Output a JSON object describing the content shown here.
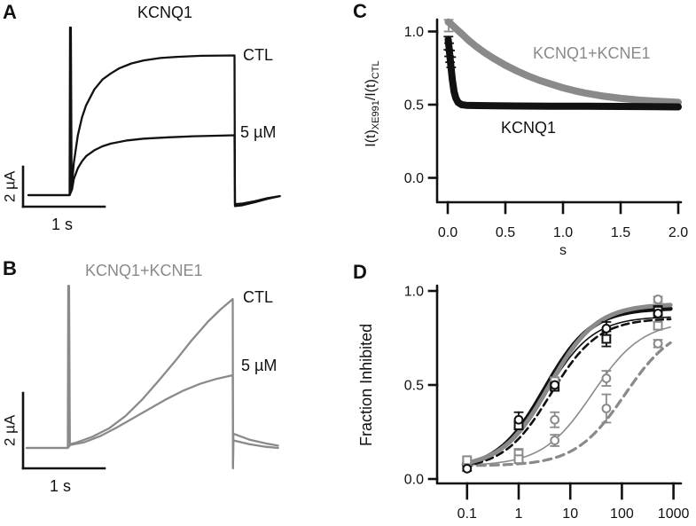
{
  "colors": {
    "black": "#111111",
    "gray": "#8a8a8a"
  },
  "panel_a": {
    "letter": "A",
    "title": "KCNQ1",
    "trace_label_ctl": "CTL",
    "trace_label_dose": "5 µM",
    "scalebar_vertical": "2 µA",
    "scalebar_horizontal": "1 s"
  },
  "panel_b": {
    "letter": "B",
    "title": "KCNQ1+KCNE1",
    "trace_label_ctl": "CTL",
    "trace_label_dose": "5 µM",
    "scalebar_vertical": "2 µA",
    "scalebar_horizontal": "1 s"
  },
  "panel_c": {
    "letter": "C",
    "ylabel_p1": "I(t)",
    "ylabel_s1": "XE991",
    "ylabel_p2": "/I(t)",
    "ylabel_s2": "CTL",
    "xlabel": "s",
    "series_label_gray": "KCNQ1+KCNE1",
    "series_label_black": "KCNQ1"
  },
  "panel_d": {
    "letter": "D",
    "ylabel": "Fraction Inhibited"
  },
  "chart_data": [
    {
      "panel": "A",
      "type": "line",
      "title": "KCNQ1",
      "description": "voltage-clamp current traces, black",
      "time_scalebar_s": 1,
      "current_scalebar_uA": 2,
      "series": [
        {
          "name": "CTL",
          "points": [
            [
              0,
              0
            ],
            [
              0.5,
              0
            ],
            [
              0.505,
              8.4
            ],
            [
              0.515,
              8.4
            ],
            [
              0.525,
              0.3
            ],
            [
              0.55,
              1.6
            ],
            [
              0.6,
              3.0
            ],
            [
              0.65,
              3.9
            ],
            [
              0.7,
              4.5
            ],
            [
              0.8,
              5.3
            ],
            [
              0.9,
              5.8
            ],
            [
              1.0,
              6.1
            ],
            [
              1.1,
              6.35
            ],
            [
              1.25,
              6.6
            ],
            [
              1.4,
              6.75
            ],
            [
              1.6,
              6.87
            ],
            [
              1.8,
              6.93
            ],
            [
              2.1,
              6.98
            ],
            [
              2.5,
              7.0
            ],
            [
              2.505,
              -0.55
            ],
            [
              2.6,
              -0.5
            ],
            [
              2.75,
              -0.35
            ],
            [
              2.9,
              -0.18
            ],
            [
              3.05,
              -0.05
            ]
          ]
        },
        {
          "name": "5 µM",
          "points": [
            [
              0,
              0
            ],
            [
              0.5,
              0
            ],
            [
              0.53,
              0.3
            ],
            [
              0.55,
              0.8
            ],
            [
              0.6,
              1.35
            ],
            [
              0.65,
              1.7
            ],
            [
              0.7,
              1.95
            ],
            [
              0.8,
              2.25
            ],
            [
              0.9,
              2.45
            ],
            [
              1.0,
              2.58
            ],
            [
              1.2,
              2.74
            ],
            [
              1.4,
              2.83
            ],
            [
              1.7,
              2.9
            ],
            [
              2.0,
              2.95
            ],
            [
              2.5,
              3.0
            ],
            [
              2.505,
              -0.45
            ],
            [
              2.6,
              -0.42
            ],
            [
              2.75,
              -0.3
            ],
            [
              2.9,
              -0.15
            ],
            [
              3.05,
              -0.05
            ]
          ]
        }
      ]
    },
    {
      "panel": "B",
      "type": "line",
      "title": "KCNQ1+KCNE1",
      "description": "voltage-clamp current traces, gray",
      "time_scalebar_s": 1,
      "current_scalebar_uA": 2,
      "series": [
        {
          "name": "CTL",
          "points": [
            [
              0,
              0
            ],
            [
              0.5,
              0
            ],
            [
              0.505,
              4.3
            ],
            [
              0.515,
              4.3
            ],
            [
              0.525,
              0.1
            ],
            [
              0.6,
              0.14
            ],
            [
              0.8,
              0.3
            ],
            [
              1.0,
              0.52
            ],
            [
              1.2,
              0.85
            ],
            [
              1.4,
              1.28
            ],
            [
              1.6,
              1.78
            ],
            [
              1.8,
              2.3
            ],
            [
              2.0,
              2.85
            ],
            [
              2.2,
              3.35
            ],
            [
              2.35,
              3.67
            ],
            [
              2.5,
              3.95
            ],
            [
              2.503,
              -0.54
            ],
            [
              2.507,
              0.38
            ],
            [
              2.7,
              0.22
            ],
            [
              2.9,
              0.12
            ],
            [
              3.05,
              0.06
            ]
          ]
        },
        {
          "name": "5 µM",
          "points": [
            [
              0,
              0
            ],
            [
              0.5,
              0
            ],
            [
              0.53,
              0.08
            ],
            [
              0.7,
              0.15
            ],
            [
              0.9,
              0.32
            ],
            [
              1.1,
              0.55
            ],
            [
              1.3,
              0.8
            ],
            [
              1.5,
              1.05
            ],
            [
              1.7,
              1.3
            ],
            [
              1.9,
              1.52
            ],
            [
              2.1,
              1.7
            ],
            [
              2.3,
              1.83
            ],
            [
              2.5,
              1.93
            ],
            [
              2.503,
              -0.5
            ],
            [
              2.507,
              0.2
            ],
            [
              2.7,
              0.1
            ],
            [
              2.9,
              0.03
            ],
            [
              3.05,
              0.0
            ]
          ]
        }
      ]
    },
    {
      "panel": "C",
      "type": "scatter",
      "title": "",
      "xlabel": "s",
      "ylabel": "I(t)XE991/I(t)CTL",
      "xlim": [
        0,
        2
      ],
      "ylim": [
        0,
        1.1
      ],
      "x_ticks": [
        0.0,
        0.5,
        1.0,
        1.5,
        2.0
      ],
      "x_tick_labels": [
        "0.0",
        "0.5",
        "1.0",
        "1.5",
        "2.0"
      ],
      "y_ticks": [
        1.0,
        0.5,
        0.0
      ],
      "y_tick_labels": [
        "1.0",
        "0.5",
        "0.0"
      ],
      "series": [
        {
          "name": "KCNQ1+KCNE1",
          "color": "gray",
          "points": [
            [
              0.004,
              1.065
            ],
            [
              0.03,
              1.05
            ],
            [
              0.07,
              1.02
            ],
            [
              0.12,
              0.985
            ],
            [
              0.18,
              0.94
            ],
            [
              0.25,
              0.895
            ],
            [
              0.32,
              0.855
            ],
            [
              0.4,
              0.815
            ],
            [
              0.5,
              0.77
            ],
            [
              0.6,
              0.73
            ],
            [
              0.7,
              0.695
            ],
            [
              0.8,
              0.665
            ],
            [
              0.9,
              0.64
            ],
            [
              1.0,
              0.615
            ],
            [
              1.1,
              0.595
            ],
            [
              1.2,
              0.578
            ],
            [
              1.35,
              0.558
            ],
            [
              1.5,
              0.543
            ],
            [
              1.65,
              0.532
            ],
            [
              1.8,
              0.524
            ],
            [
              1.95,
              0.518
            ],
            [
              2.0,
              0.516
            ]
          ]
        },
        {
          "name": "KCNQ1",
          "color": "black",
          "points": [
            [
              0.004,
              0.945
            ],
            [
              0.01,
              0.9
            ],
            [
              0.018,
              0.84
            ],
            [
              0.028,
              0.76
            ],
            [
              0.04,
              0.67
            ],
            [
              0.055,
              0.59
            ],
            [
              0.07,
              0.545
            ],
            [
              0.09,
              0.515
            ],
            [
              0.12,
              0.5
            ],
            [
              0.16,
              0.496
            ],
            [
              0.25,
              0.494
            ],
            [
              0.4,
              0.492
            ],
            [
              0.6,
              0.491
            ],
            [
              0.9,
              0.49
            ],
            [
              1.2,
              0.489
            ],
            [
              1.5,
              0.488
            ],
            [
              1.8,
              0.486
            ],
            [
              2.0,
              0.485
            ]
          ]
        }
      ],
      "error_bars": [
        {
          "color": "gray",
          "x": 0.008,
          "y": 1.04,
          "e": 0.04
        },
        {
          "color": "black",
          "x": 0.006,
          "y": 0.92,
          "e": 0.045
        },
        {
          "color": "black",
          "x": 0.012,
          "y": 0.875,
          "e": 0.045
        },
        {
          "color": "black",
          "x": 0.02,
          "y": 0.83,
          "e": 0.04
        },
        {
          "color": "black",
          "x": 0.03,
          "y": 0.79,
          "e": 0.035
        }
      ]
    },
    {
      "panel": "D",
      "type": "scatter",
      "title": "",
      "ylabel": "Fraction Inhibited",
      "x_scale": "log",
      "xlim": [
        0.04,
        1000
      ],
      "ylim": [
        0,
        1.0
      ],
      "x_ticks": [
        0.1,
        1,
        10,
        100,
        1000
      ],
      "x_tick_labels": [
        "0.1",
        "1",
        "10",
        "100",
        "1000"
      ],
      "y_ticks": [
        1.0,
        0.5,
        0.0
      ],
      "y_tick_labels": [
        "1.0",
        "0.5",
        "0.0"
      ],
      "fit_curves": [
        {
          "name": "gray dashed fit",
          "color": "gray",
          "width": 3.2,
          "dash": "9,6",
          "bottom": 0.07,
          "top": 0.83,
          "ic50": 115,
          "hill": 0.9
        },
        {
          "name": "thin gray fit",
          "color": "gray",
          "width": 1.6,
          "dash": "",
          "bottom": 0.07,
          "top": 0.84,
          "ic50": 27,
          "hill": 0.9
        },
        {
          "name": "black dashed fit",
          "color": "black",
          "width": 2.6,
          "dash": "8,5",
          "bottom": 0.05,
          "top": 0.855,
          "ic50": 4.2,
          "hill": 0.95
        },
        {
          "name": "thin black fit",
          "color": "black",
          "width": 1.6,
          "dash": "",
          "bottom": 0.05,
          "top": 0.865,
          "ic50": 3.4,
          "hill": 0.95
        },
        {
          "name": "thick black fit",
          "color": "black",
          "width": 5,
          "dash": "",
          "bottom": 0.05,
          "top": 0.91,
          "ic50": 3.2,
          "hill": 0.95
        },
        {
          "name": "thick gray fit",
          "color": "gray",
          "width": 5,
          "dash": "",
          "bottom": 0.06,
          "top": 0.93,
          "ic50": 3.9,
          "hill": 0.95
        }
      ],
      "markers": [
        {
          "name": "gray circles lower",
          "shape": "circle",
          "color": "gray",
          "points": [
            [
              5,
              0.205,
              0.03
            ],
            [
              50,
              0.375,
              0.075
            ],
            [
              500,
              0.72,
              0.02
            ]
          ]
        },
        {
          "name": "gray circles upper",
          "shape": "circle",
          "color": "gray",
          "points": [
            [
              0.1,
              0.085,
              0.01
            ],
            [
              5,
              0.315,
              0.04
            ],
            [
              50,
              0.535,
              0.04
            ],
            [
              500,
              0.955,
              0.015
            ]
          ]
        },
        {
          "name": "gray squares",
          "shape": "square",
          "color": "gray",
          "points": [
            [
              0.1,
              0.1,
              0.012
            ],
            [
              1,
              0.135,
              0.025
            ],
            [
              1,
              0.105,
              0.02
            ],
            [
              5,
              0.52,
              0.02
            ],
            [
              500,
              0.815,
              0.02
            ]
          ]
        },
        {
          "name": "black squares",
          "shape": "square",
          "color": "black",
          "points": [
            [
              1,
              0.285,
              0.02
            ],
            [
              5,
              0.49,
              0.02
            ],
            [
              50,
              0.745,
              0.04
            ],
            [
              500,
              0.895,
              0.025
            ]
          ]
        },
        {
          "name": "black circles",
          "shape": "circle",
          "color": "black",
          "points": [
            [
              0.1,
              0.055,
              0.012
            ],
            [
              1,
              0.315,
              0.04
            ],
            [
              5,
              0.5,
              0.025
            ],
            [
              50,
              0.8,
              0.035
            ],
            [
              500,
              0.88,
              0.02
            ]
          ]
        }
      ]
    }
  ]
}
